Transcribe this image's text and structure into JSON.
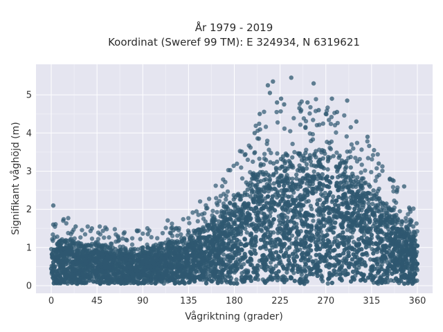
{
  "chart_data": {
    "type": "scatter",
    "title": [
      "År 1979 - 2019",
      "Koordinat (Sweref 99 TM): E 324934, N 6319621"
    ],
    "xlabel": "Vågriktning (grader)",
    "ylabel": "Signifikant våghöjd (m)",
    "xlim": [
      -15,
      375
    ],
    "ylim": [
      -0.2,
      5.8
    ],
    "xticks": [
      0,
      45,
      90,
      135,
      180,
      225,
      270,
      315,
      360
    ],
    "yticks": [
      0,
      1,
      2,
      3,
      4,
      5
    ],
    "grid": true,
    "legend": "none",
    "background": "#e5e5f0",
    "marker_color": "#2f5870",
    "envelope": {
      "x": [
        0,
        10,
        20,
        30,
        45,
        60,
        75,
        90,
        105,
        120,
        135,
        150,
        165,
        180,
        195,
        210,
        225,
        240,
        255,
        270,
        285,
        300,
        315,
        330,
        345,
        360
      ],
      "y_max": [
        1.0,
        1.2,
        1.2,
        1.1,
        1.1,
        1.0,
        0.95,
        1.0,
        1.1,
        1.2,
        1.3,
        1.6,
        1.9,
        2.3,
        2.9,
        3.3,
        3.4,
        3.5,
        3.5,
        3.6,
        3.4,
        3.0,
        2.6,
        2.2,
        1.7,
        1.4
      ]
    },
    "outliers": [
      {
        "x": 2,
        "y": 2.1
      },
      {
        "x": 2,
        "y": 1.6
      },
      {
        "x": 24,
        "y": 1.55
      },
      {
        "x": 40,
        "y": 1.5
      },
      {
        "x": 95,
        "y": 1.35
      },
      {
        "x": 120,
        "y": 1.45
      },
      {
        "x": 200,
        "y": 4.0
      },
      {
        "x": 205,
        "y": 4.5
      },
      {
        "x": 213,
        "y": 5.25
      },
      {
        "x": 215,
        "y": 5.05
      },
      {
        "x": 218,
        "y": 5.35
      },
      {
        "x": 222,
        "y": 4.8
      },
      {
        "x": 226,
        "y": 4.9
      },
      {
        "x": 229,
        "y": 4.75
      },
      {
        "x": 236,
        "y": 5.45
      },
      {
        "x": 244,
        "y": 4.65
      },
      {
        "x": 252,
        "y": 4.8
      },
      {
        "x": 258,
        "y": 5.3
      },
      {
        "x": 263,
        "y": 4.6
      },
      {
        "x": 270,
        "y": 4.5
      },
      {
        "x": 276,
        "y": 4.9
      },
      {
        "x": 281,
        "y": 4.55
      },
      {
        "x": 291,
        "y": 4.85
      },
      {
        "x": 300,
        "y": 4.3
      },
      {
        "x": 311,
        "y": 3.9
      },
      {
        "x": 322,
        "y": 3.2
      },
      {
        "x": 333,
        "y": 2.8
      },
      {
        "x": 340,
        "y": 2.5
      },
      {
        "x": 347,
        "y": 2.6
      },
      {
        "x": 353,
        "y": 1.6
      },
      {
        "x": 356,
        "y": 1.55
      }
    ]
  }
}
